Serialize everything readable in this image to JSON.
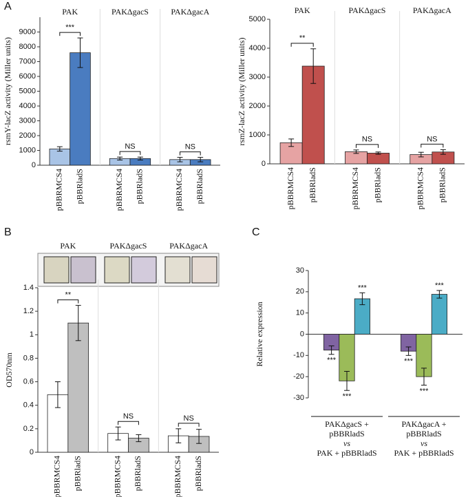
{
  "chart_data": [
    {
      "type": "bar",
      "panel": "A",
      "ylabel": "rsmY-lacZ activity (Miller units)",
      "categories": [
        "PAK",
        "PAKΔgacS",
        "PAKΔgacA"
      ],
      "series": [
        {
          "name": "pBBRMCS4",
          "color": "#a9c4e6",
          "values": [
            1100,
            450,
            380
          ],
          "errors": [
            150,
            100,
            150
          ]
        },
        {
          "name": "pBBRladS",
          "color": "#4a7cc0",
          "values": [
            7600,
            450,
            380
          ],
          "errors": [
            1000,
            100,
            150
          ]
        }
      ],
      "significance": [
        "***",
        "NS",
        "NS"
      ],
      "ylim": [
        0,
        10000
      ],
      "yticks": [
        0,
        1000,
        2000,
        3000,
        4000,
        5000,
        6000,
        7000,
        8000,
        9000
      ]
    },
    {
      "type": "bar",
      "ylabel": "rsmZ-lacZ activity (Miller units)",
      "categories": [
        "PAK",
        "PAKΔgacS",
        "PAKΔgacA"
      ],
      "series": [
        {
          "name": "pBBRMCS4",
          "color": "#e6a3a3",
          "values": [
            730,
            420,
            320
          ],
          "errors": [
            130,
            60,
            80
          ]
        },
        {
          "name": "pBBRladS",
          "color": "#c0504d",
          "values": [
            3380,
            370,
            410
          ],
          "errors": [
            600,
            40,
            80
          ]
        }
      ],
      "significance": [
        "**",
        "NS",
        "NS"
      ],
      "ylim": [
        0,
        5000
      ],
      "yticks": [
        0,
        1000,
        2000,
        3000,
        4000,
        5000
      ]
    },
    {
      "type": "bar",
      "panel": "B",
      "ylabel": "OD570nm",
      "categories": [
        "PAK",
        "PAKΔgacS",
        "PAKΔgacA"
      ],
      "series": [
        {
          "name": "pBBRMCS4",
          "color": "#ffffff",
          "values": [
            0.49,
            0.16,
            0.14
          ],
          "errors": [
            0.11,
            0.055,
            0.06
          ]
        },
        {
          "name": "pBBRladS",
          "color": "#bfbfbf",
          "values": [
            1.1,
            0.12,
            0.135
          ],
          "errors": [
            0.15,
            0.03,
            0.06
          ]
        }
      ],
      "significance": [
        "**",
        "NS",
        "NS"
      ],
      "ylim": [
        0,
        1.4
      ],
      "yticks": [
        0,
        0.2,
        0.4,
        0.6,
        0.8,
        1,
        1.2,
        1.4
      ]
    },
    {
      "type": "bar",
      "panel": "C",
      "ylabel": "Relative expression",
      "categories": [
        [
          "PAKΔgacS +",
          "pBBRladS",
          "vs",
          "PAK + pBBRladS"
        ],
        [
          "PAKΔgacA +",
          "pBBRladS",
          "vs",
          "PAK + pBBRladS"
        ]
      ],
      "series": [
        {
          "color": "#8064a2",
          "values": [
            -7.5,
            -8
          ],
          "errors": [
            2,
            2
          ],
          "star_labels": [
            "***",
            "***"
          ]
        },
        {
          "color": "#9bbb59",
          "values": [
            -22,
            -20
          ],
          "errors": [
            4.5,
            4
          ],
          "star_labels": [
            "***",
            "***"
          ]
        },
        {
          "color": "#4bacc6",
          "values": [
            16.7,
            18.8
          ],
          "errors": [
            2.8,
            1.8
          ],
          "star_labels": [
            "***",
            "***"
          ]
        }
      ],
      "ylim": [
        -30,
        30
      ],
      "yticks": [
        -30,
        -20,
        -10,
        0,
        10,
        20,
        30
      ]
    }
  ]
}
